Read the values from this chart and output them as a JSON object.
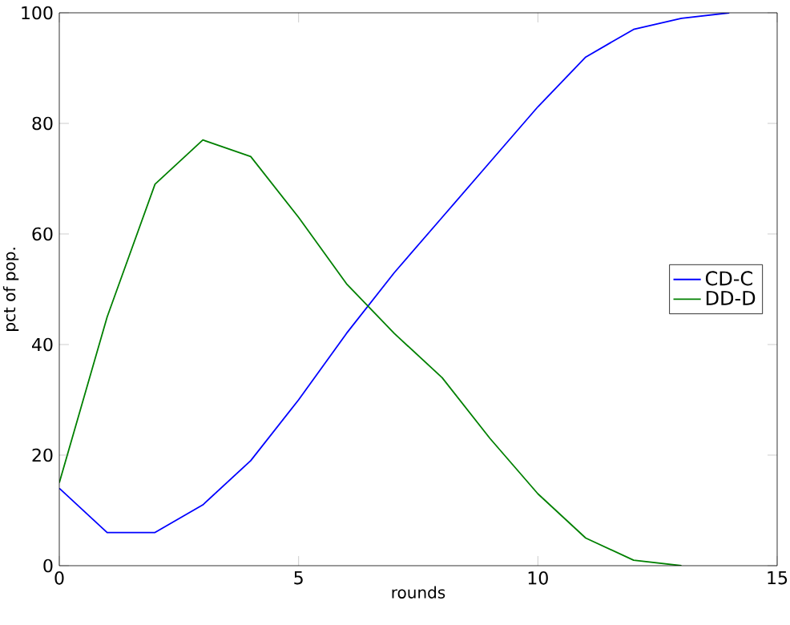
{
  "chart_data": {
    "type": "line",
    "xlabel": "rounds",
    "ylabel": "pct of pop.",
    "x": [
      0,
      1,
      2,
      3,
      4,
      5,
      6,
      7,
      8,
      9,
      10,
      11,
      12,
      13,
      14
    ],
    "xlim": [
      0,
      15
    ],
    "ylim": [
      0,
      100
    ],
    "xticks": [
      0,
      5,
      10,
      15
    ],
    "yticks": [
      0,
      20,
      40,
      60,
      80,
      100
    ],
    "grid": false,
    "legend": "right",
    "marker": "none",
    "line_style": "solid",
    "series": [
      {
        "name": "CD-C",
        "color": "#0000ff",
        "values": [
          14,
          6,
          6,
          11,
          19,
          30,
          42,
          53,
          63,
          73,
          83,
          92,
          97,
          99,
          100
        ]
      },
      {
        "name": "DD-D",
        "color": "#008000",
        "values": [
          15,
          45,
          69,
          77,
          74,
          63,
          51,
          42,
          34,
          23,
          13,
          5,
          1,
          0,
          null
        ]
      }
    ]
  }
}
